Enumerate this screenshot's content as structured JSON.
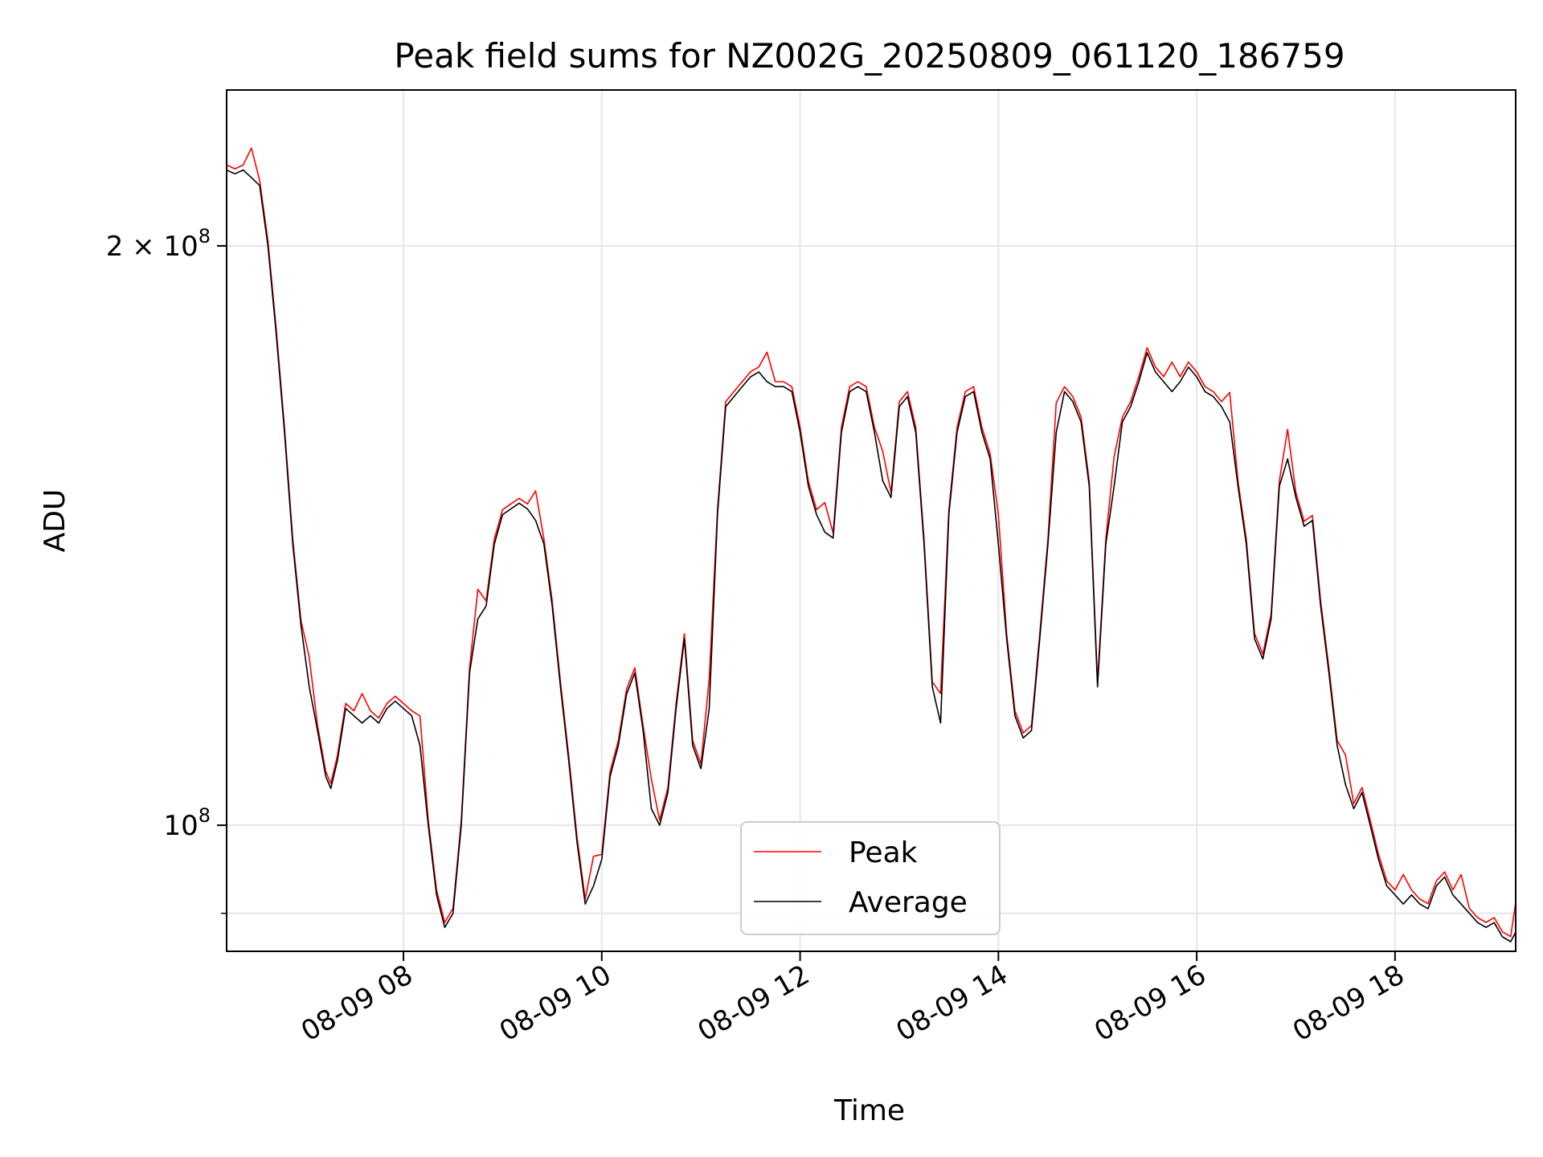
{
  "chart_data": {
    "type": "line",
    "title": "Peak field sums for NZ002G_20250809_061120_186759",
    "xlabel": "Time",
    "ylabel": "ADU",
    "x_axis_type": "time",
    "y_scale": "log",
    "xlim": [
      "2025-08-09T06:13",
      "2025-08-09T19:13"
    ],
    "ylim": [
      86000000,
      241000000
    ],
    "x_ticks": [
      {
        "t": "2025-08-09T08:00",
        "label": "08-09 08"
      },
      {
        "t": "2025-08-09T10:00",
        "label": "08-09 10"
      },
      {
        "t": "2025-08-09T12:00",
        "label": "08-09 12"
      },
      {
        "t": "2025-08-09T14:00",
        "label": "08-09 14"
      },
      {
        "t": "2025-08-09T16:00",
        "label": "08-09 16"
      },
      {
        "t": "2025-08-09T18:00",
        "label": "08-09 18"
      }
    ],
    "y_major_ticks": [
      {
        "value": 100000000,
        "base": "10",
        "exp": "8",
        "mult": ""
      },
      {
        "value": 200000000,
        "base": "10",
        "exp": "8",
        "mult": "2 × "
      }
    ],
    "y_minor_ticks": [
      90000000
    ],
    "grid": true,
    "legend": {
      "position": "lower center",
      "entries": [
        "Peak",
        "Average"
      ]
    },
    "series": [
      {
        "name": "Average",
        "color": "#000000",
        "points": [
          [
            "06:13",
            219
          ],
          [
            "06:18",
            218
          ],
          [
            "06:23",
            219
          ],
          [
            "06:28",
            217
          ],
          [
            "06:33",
            215
          ],
          [
            "06:38",
            200
          ],
          [
            "06:43",
            180
          ],
          [
            "06:48",
            160
          ],
          [
            "06:53",
            140
          ],
          [
            "06:58",
            127
          ],
          [
            "07:03",
            118
          ],
          [
            "07:08",
            112
          ],
          [
            "07:13",
            106
          ],
          [
            "07:16",
            104.5
          ],
          [
            "07:20",
            108
          ],
          [
            "07:25",
            115
          ],
          [
            "07:30",
            114
          ],
          [
            "07:35",
            113
          ],
          [
            "07:40",
            114
          ],
          [
            "07:45",
            113
          ],
          [
            "07:50",
            115
          ],
          [
            "07:55",
            116
          ],
          [
            "08:00",
            115
          ],
          [
            "08:05",
            114
          ],
          [
            "08:10",
            110
          ],
          [
            "08:15",
            100
          ],
          [
            "08:20",
            92
          ],
          [
            "08:25",
            88.5
          ],
          [
            "08:30",
            90
          ],
          [
            "08:35",
            100
          ],
          [
            "08:40",
            120
          ],
          [
            "08:45",
            128
          ],
          [
            "08:50",
            130
          ],
          [
            "08:55",
            140
          ],
          [
            "09:00",
            145
          ],
          [
            "09:05",
            146
          ],
          [
            "09:10",
            147
          ],
          [
            "09:15",
            146
          ],
          [
            "09:20",
            144
          ],
          [
            "09:25",
            140
          ],
          [
            "09:30",
            130
          ],
          [
            "09:35",
            118
          ],
          [
            "09:40",
            108
          ],
          [
            "09:45",
            98
          ],
          [
            "09:50",
            91
          ],
          [
            "09:55",
            93
          ],
          [
            "10:00",
            96
          ],
          [
            "10:05",
            106
          ],
          [
            "10:10",
            110
          ],
          [
            "10:15",
            117
          ],
          [
            "10:20",
            120
          ],
          [
            "10:25",
            112
          ],
          [
            "10:30",
            102
          ],
          [
            "10:35",
            100
          ],
          [
            "10:40",
            104
          ],
          [
            "10:45",
            115
          ],
          [
            "10:50",
            125
          ],
          [
            "10:55",
            110
          ],
          [
            "11:00",
            107
          ],
          [
            "11:05",
            115
          ],
          [
            "11:10",
            145
          ],
          [
            "11:15",
            165
          ],
          [
            "11:20",
            167
          ],
          [
            "11:25",
            169
          ],
          [
            "11:30",
            171
          ],
          [
            "11:35",
            172
          ],
          [
            "11:40",
            170
          ],
          [
            "11:45",
            169
          ],
          [
            "11:50",
            169
          ],
          [
            "11:55",
            168
          ],
          [
            "12:00",
            160
          ],
          [
            "12:05",
            150
          ],
          [
            "12:10",
            145
          ],
          [
            "12:15",
            142
          ],
          [
            "12:20",
            141
          ],
          [
            "12:25",
            160
          ],
          [
            "12:30",
            168
          ],
          [
            "12:35",
            169
          ],
          [
            "12:40",
            168
          ],
          [
            "12:45",
            160
          ],
          [
            "12:50",
            151
          ],
          [
            "12:55",
            148
          ],
          [
            "13:00",
            165
          ],
          [
            "13:05",
            167
          ],
          [
            "13:10",
            160
          ],
          [
            "13:15",
            140
          ],
          [
            "13:20",
            118
          ],
          [
            "13:25",
            113
          ],
          [
            "13:30",
            145
          ],
          [
            "13:35",
            160
          ],
          [
            "13:40",
            167
          ],
          [
            "13:45",
            168
          ],
          [
            "13:50",
            160
          ],
          [
            "13:55",
            155
          ],
          [
            "14:00",
            140
          ],
          [
            "14:05",
            125
          ],
          [
            "14:10",
            114
          ],
          [
            "14:15",
            111
          ],
          [
            "14:20",
            112
          ],
          [
            "14:25",
            125
          ],
          [
            "14:30",
            140
          ],
          [
            "14:35",
            160
          ],
          [
            "14:40",
            168
          ],
          [
            "14:45",
            166
          ],
          [
            "14:50",
            162
          ],
          [
            "14:55",
            150
          ],
          [
            "15:00",
            118
          ],
          [
            "15:05",
            140
          ],
          [
            "15:10",
            150
          ],
          [
            "15:15",
            162
          ],
          [
            "15:20",
            165
          ],
          [
            "15:25",
            170
          ],
          [
            "15:30",
            176
          ],
          [
            "15:35",
            172
          ],
          [
            "15:40",
            170
          ],
          [
            "15:45",
            168
          ],
          [
            "15:50",
            170
          ],
          [
            "15:55",
            173
          ],
          [
            "16:00",
            171
          ],
          [
            "16:05",
            168
          ],
          [
            "16:10",
            167
          ],
          [
            "16:15",
            165
          ],
          [
            "16:20",
            162
          ],
          [
            "16:25",
            150
          ],
          [
            "16:30",
            140
          ],
          [
            "16:35",
            125
          ],
          [
            "16:40",
            122
          ],
          [
            "16:45",
            128
          ],
          [
            "16:50",
            150
          ],
          [
            "16:55",
            155
          ],
          [
            "17:00",
            148
          ],
          [
            "17:05",
            143
          ],
          [
            "17:10",
            144
          ],
          [
            "17:15",
            130
          ],
          [
            "17:20",
            120
          ],
          [
            "17:25",
            110
          ],
          [
            "17:30",
            105
          ],
          [
            "17:35",
            102
          ],
          [
            "17:40",
            104
          ],
          [
            "17:45",
            100
          ],
          [
            "17:50",
            96
          ],
          [
            "17:55",
            93
          ],
          [
            "18:00",
            92
          ],
          [
            "18:05",
            91
          ],
          [
            "18:10",
            92
          ],
          [
            "18:15",
            91
          ],
          [
            "18:20",
            90.5
          ],
          [
            "18:25",
            93
          ],
          [
            "18:30",
            94
          ],
          [
            "18:35",
            92
          ],
          [
            "18:40",
            91
          ],
          [
            "18:45",
            90
          ],
          [
            "18:50",
            89
          ],
          [
            "18:55",
            88.5
          ],
          [
            "19:00",
            89
          ],
          [
            "19:05",
            87.5
          ],
          [
            "19:10",
            87
          ],
          [
            "19:13",
            88
          ]
        ]
      },
      {
        "name": "Peak",
        "color": "#ff0000",
        "points": []
      }
    ]
  }
}
